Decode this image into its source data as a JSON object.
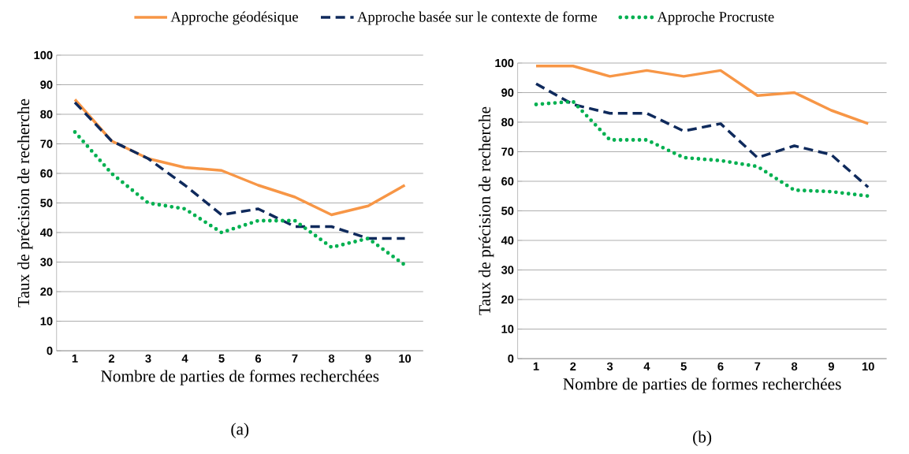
{
  "chart_data": [
    {
      "type": "line",
      "xlabel": "Nombre de parties de formes recherchées",
      "ylabel": "Taux de précision de recherche",
      "categories": [
        "1",
        "2",
        "3",
        "4",
        "5",
        "6",
        "7",
        "8",
        "9",
        "10"
      ],
      "ylim": [
        0,
        100
      ],
      "yticks": [
        0,
        10,
        20,
        30,
        40,
        50,
        60,
        70,
        80,
        90,
        100
      ],
      "grid": "y",
      "legend": "top",
      "annotations": [
        "(a)"
      ],
      "series": [
        {
          "name": "Approche géodésique",
          "color": "#f79646",
          "line_style": "solid",
          "values": [
            85,
            71,
            65,
            62,
            61,
            56,
            52,
            46,
            49,
            56
          ]
        },
        {
          "name": "Approche basée sur le contexte de forme",
          "color": "#0f2a5c",
          "line_style": "dashed",
          "values": [
            84,
            71,
            65,
            56,
            46,
            48,
            42,
            42,
            38,
            38
          ]
        },
        {
          "name": "Approche Procruste",
          "color": "#00b050",
          "line_style": "dotted",
          "values": [
            74,
            60,
            50,
            48,
            40,
            44,
            44,
            35,
            38,
            29
          ]
        }
      ]
    },
    {
      "type": "line",
      "xlabel": "Nombre de parties de formes recherchées",
      "ylabel": "Taux de précision de recherche",
      "categories": [
        "1",
        "2",
        "3",
        "4",
        "5",
        "6",
        "7",
        "8",
        "9",
        "10"
      ],
      "ylim": [
        0,
        100
      ],
      "yticks": [
        0,
        10,
        20,
        30,
        40,
        50,
        60,
        70,
        80,
        90,
        100
      ],
      "grid": "y",
      "annotations": [
        "(b)"
      ],
      "series": [
        {
          "color": "#f79646",
          "line_style": "solid",
          "values": [
            99,
            99,
            95.5,
            97.5,
            95.5,
            97.5,
            89,
            90,
            84,
            79.5
          ]
        },
        {
          "color": "#0f2a5c",
          "line_style": "dashed",
          "values": [
            93,
            86,
            83,
            83,
            77,
            79.5,
            68,
            72,
            69,
            58
          ]
        },
        {
          "color": "#00b050",
          "line_style": "dotted",
          "values": [
            86,
            87,
            74,
            74,
            68,
            67,
            65,
            57,
            56.5,
            55
          ]
        }
      ]
    }
  ]
}
